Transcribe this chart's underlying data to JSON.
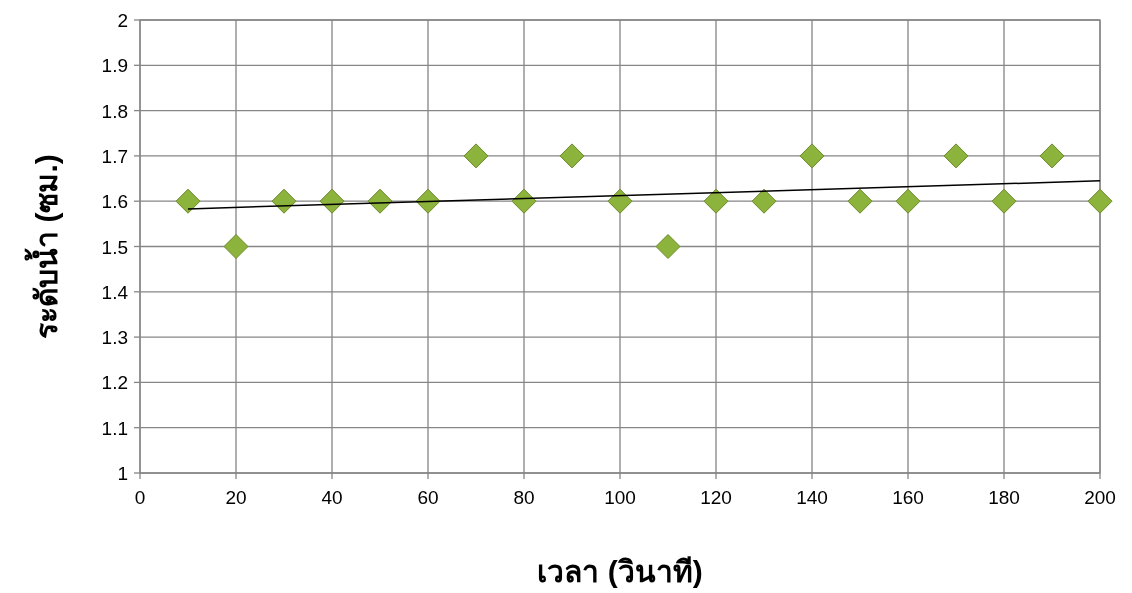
{
  "chart_data": {
    "type": "scatter",
    "xlabel": "เวลา (วินาที)",
    "ylabel": "ระดับน้ำ (ซม.)",
    "x": [
      10,
      20,
      30,
      40,
      50,
      60,
      70,
      80,
      90,
      100,
      110,
      120,
      130,
      140,
      150,
      160,
      170,
      180,
      190,
      200
    ],
    "series": [
      {
        "color": "#8cb33c",
        "marker": "diamond",
        "values": [
          1.6,
          1.5,
          1.6,
          1.6,
          1.6,
          1.6,
          1.7,
          1.6,
          1.7,
          1.6,
          1.5,
          1.6,
          1.6,
          1.7,
          1.6,
          1.6,
          1.7,
          1.6,
          1.7,
          1.6
        ]
      },
      {
        "type": "line",
        "color": "#000000",
        "x": [
          10,
          200
        ],
        "values": [
          1.583,
          1.645
        ]
      }
    ],
    "xlim": [
      0,
      200
    ],
    "ylim": [
      1,
      2
    ],
    "xticks": [
      0,
      20,
      40,
      60,
      80,
      100,
      120,
      140,
      160,
      180,
      200
    ],
    "yticks": [
      1,
      1.1,
      1.2,
      1.3,
      1.4,
      1.5,
      1.6,
      1.7,
      1.8,
      1.9,
      2
    ],
    "grid": true
  }
}
